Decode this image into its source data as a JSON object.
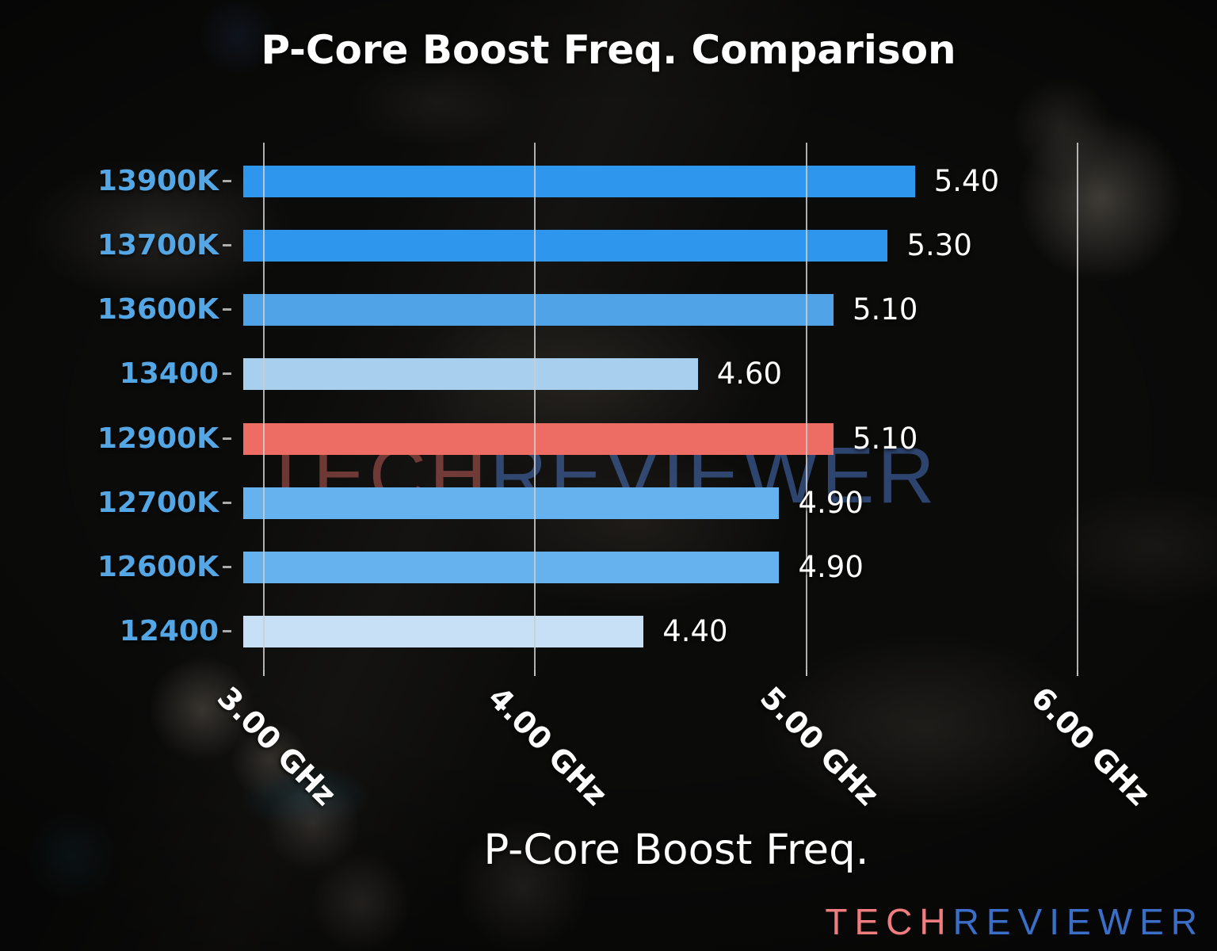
{
  "watermark": {
    "tech": "TECH",
    "reviewer": "REVIEWER",
    "tech_color": "rgba(190,92,88,0.55)",
    "reviewer_color": "rgba(80,125,210,0.50)"
  },
  "logo": {
    "tech": "TECH",
    "reviewer": "REVIEWER",
    "tech_color": "#ef7c7e",
    "reviewer_color": "#3b6fc7"
  },
  "chart_data": {
    "type": "bar",
    "orientation": "horizontal",
    "title": "P-Core Boost Freq. Comparison",
    "xlabel": "P-Core Boost Freq.",
    "ylabel": "",
    "categories": [
      "13900K",
      "13700K",
      "13600K",
      "13400",
      "12900K",
      "12700K",
      "12600K",
      "12400"
    ],
    "values": [
      5.4,
      5.3,
      5.1,
      4.6,
      5.1,
      4.9,
      4.9,
      4.4
    ],
    "value_labels": [
      "5.40",
      "5.30",
      "5.10",
      "4.60",
      "5.10",
      "4.90",
      "4.90",
      "4.40"
    ],
    "unit": "GHz",
    "bar_colors": [
      "#2e97ed",
      "#2e97ed",
      "#4fa3e6",
      "#a8cfee",
      "#ed6c63",
      "#65b2ef",
      "#65b2ef",
      "#c8e0f5"
    ],
    "highlight_category": "12900K",
    "highlight_color": "#ed6c63",
    "x_ticks": [
      {
        "value": 3,
        "label": "3.00 GHz"
      },
      {
        "value": 4,
        "label": "4.00 GHz"
      },
      {
        "value": 5,
        "label": "5.00 GHz"
      },
      {
        "value": 6,
        "label": "6.00 GHz"
      }
    ],
    "xlim": [
      2.925,
      6.116
    ],
    "grid": "vertical gridlines, drawn above bars",
    "legend": "none",
    "category_label_color": "#54a7e4",
    "value_label_color": "#ffffff",
    "tick_label_rotation_deg": 45
  }
}
